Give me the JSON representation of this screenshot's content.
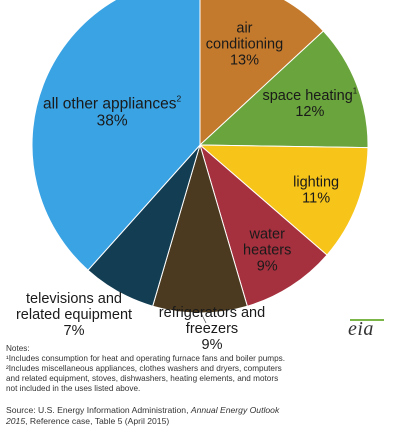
{
  "chart_data": {
    "type": "pie",
    "title": "",
    "slices": [
      {
        "label_lines": [
          "air",
          "conditioning"
        ],
        "value": 13,
        "value_label": "13%",
        "color": "#c47a2d"
      },
      {
        "label_lines": [
          "space heating"
        ],
        "sup": "1",
        "value": 12,
        "value_label": "12%",
        "color": "#6aa43c"
      },
      {
        "label_lines": [
          "lighting"
        ],
        "value": 11,
        "value_label": "11%",
        "color": "#f7c41a"
      },
      {
        "label_lines": [
          "water",
          "heaters"
        ],
        "value": 9,
        "value_label": "9%",
        "color": "#a5303e"
      },
      {
        "label_lines": [
          "refrigerators and",
          "freezers"
        ],
        "value": 9,
        "value_label": "9%",
        "color": "#4b3a1f"
      },
      {
        "label_lines": [
          "televisions and",
          "related equipment"
        ],
        "value": 7,
        "value_label": "7%",
        "color": "#123d52"
      },
      {
        "label_lines": [
          "all other appliances"
        ],
        "sup": "2",
        "value": 38,
        "value_label": "38%",
        "color": "#3aa3e4"
      }
    ]
  },
  "logo": {
    "text": "eia"
  },
  "notes": {
    "heading": "Notes:",
    "lines": [
      "¹Includes consumption for heat and operating furnace fans and boiler pumps.",
      "²Includes miscellaneous appliances, clothes washers and dryers, computers",
      "and related equipment,  stoves, dishwashers, heating elements, and motors",
      "not included in the uses listed above."
    ]
  },
  "source": {
    "prefix": "Source: U.S. Energy Information Administration, ",
    "italic": "Annual Energy Outlook",
    "italic2": "2015",
    "suffix": ", Reference case, Table 5 (April 2015)"
  }
}
